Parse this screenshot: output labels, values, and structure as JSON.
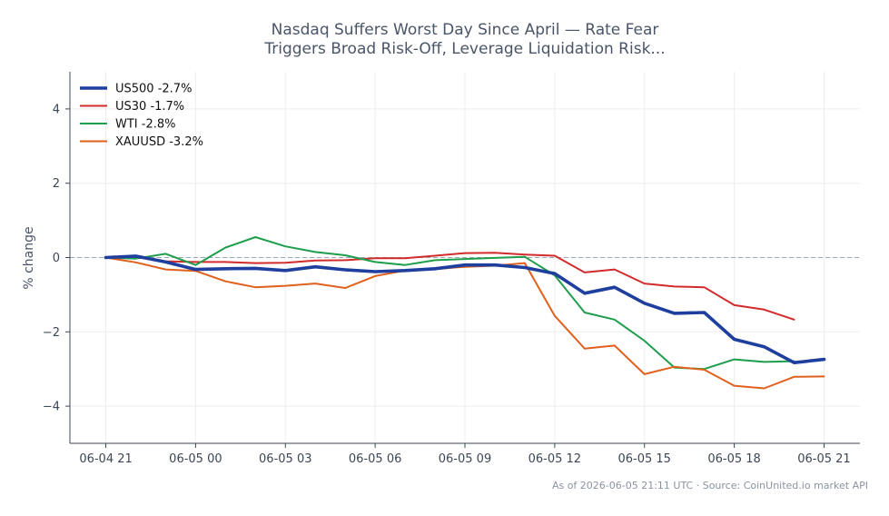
{
  "chart_data": {
    "type": "line",
    "title_lines": [
      "Nasdaq Suffers Worst Day Since April — Rate Fear",
      "Triggers Broad Risk-Off, Leverage Liquidation Risk..."
    ],
    "ylabel": "% change",
    "xlabel": "",
    "ylim": [
      -5,
      5
    ],
    "y_ticks": [
      -4,
      -2,
      0,
      2,
      4
    ],
    "y_tick_labels": [
      "−4",
      "−2",
      "0",
      "2",
      "4"
    ],
    "x_ticks": [
      "06-04 21",
      "06-05 00",
      "06-05 03",
      "06-05 06",
      "06-05 09",
      "06-05 12",
      "06-05 15",
      "06-05 18",
      "06-05 21"
    ],
    "x_tick_hours": [
      0,
      3,
      6,
      9,
      12,
      15,
      18,
      21,
      24
    ],
    "x_range_hours": [
      -1.2,
      25.2
    ],
    "reference_line_y": 0,
    "grid": true,
    "legend_position": "top-left",
    "series": [
      {
        "name": "US500 -2.7%",
        "color": "#1f3f9e",
        "bold": true,
        "x": [
          0,
          1,
          2,
          3,
          4,
          5,
          6,
          7,
          8,
          9,
          10,
          11,
          12,
          13,
          14,
          15,
          16,
          17,
          18,
          19,
          20,
          21,
          22,
          23,
          24
        ],
        "y": [
          0.0,
          0.04,
          -0.12,
          -0.32,
          -0.3,
          -0.29,
          -0.35,
          -0.25,
          -0.33,
          -0.38,
          -0.35,
          -0.3,
          -0.2,
          -0.2,
          -0.27,
          -0.43,
          -0.96,
          -0.8,
          -1.23,
          -1.5,
          -1.48,
          -2.2,
          -2.4,
          -2.83,
          -2.74
        ]
      },
      {
        "name": "US30 -1.7%",
        "color": "#d22b2b",
        "bold": false,
        "x": [
          0,
          1,
          2,
          3,
          4,
          5,
          6,
          7,
          8,
          9,
          10,
          11,
          12,
          13,
          14,
          15,
          16,
          17,
          18,
          19,
          20,
          21,
          22,
          23
        ],
        "y": [
          0.0,
          0.01,
          -0.1,
          -0.12,
          -0.12,
          -0.15,
          -0.14,
          -0.08,
          -0.07,
          -0.02,
          -0.02,
          0.05,
          0.12,
          0.13,
          0.08,
          0.05,
          -0.4,
          -0.32,
          -0.7,
          -0.78,
          -0.8,
          -1.28,
          -1.4,
          -1.67
        ]
      },
      {
        "name": "WTI -2.8%",
        "color": "#1e9e4c",
        "bold": false,
        "x": [
          0,
          1,
          2,
          3,
          4,
          5,
          6,
          7,
          8,
          9,
          10,
          11,
          12,
          13,
          14,
          15,
          16,
          17,
          18,
          19,
          20,
          21,
          22,
          23
        ],
        "y": [
          0.0,
          -0.03,
          0.1,
          -0.2,
          0.27,
          0.55,
          0.3,
          0.15,
          0.06,
          -0.12,
          -0.2,
          -0.07,
          -0.04,
          -0.01,
          0.02,
          -0.48,
          -1.48,
          -1.67,
          -2.24,
          -2.96,
          -3.0,
          -2.74,
          -2.81,
          -2.79
        ]
      },
      {
        "name": "XAUUSD -3.2%",
        "color": "#e0611e",
        "bold": false,
        "x": [
          0,
          1,
          2,
          3,
          4,
          5,
          6,
          7,
          8,
          9,
          10,
          11,
          12,
          13,
          14,
          15,
          16,
          17,
          18,
          19,
          20,
          21,
          22,
          23,
          24
        ],
        "y": [
          0.0,
          -0.13,
          -0.32,
          -0.36,
          -0.64,
          -0.8,
          -0.76,
          -0.7,
          -0.82,
          -0.5,
          -0.35,
          -0.31,
          -0.25,
          -0.22,
          -0.15,
          -1.57,
          -2.45,
          -2.37,
          -3.14,
          -2.94,
          -3.02,
          -3.45,
          -3.52,
          -3.21,
          -3.2
        ]
      }
    ],
    "footer": "As of 2026-06-05 21:11 UTC · Source: CoinUnited.io market API"
  },
  "colors": {
    "axis": "#3d4654",
    "grid": "#eeeeee",
    "reference_line": "#9aa8bb"
  }
}
